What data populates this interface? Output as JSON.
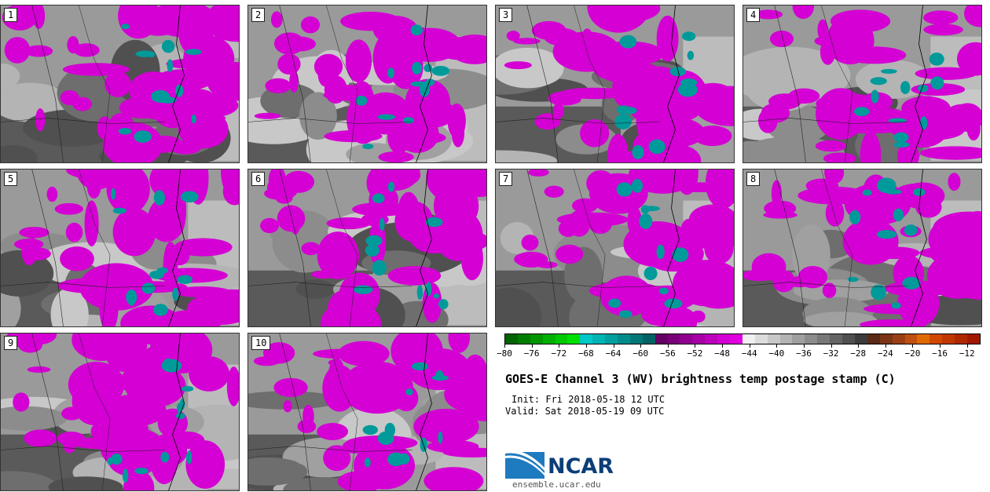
{
  "panels": [
    {
      "label": "1"
    },
    {
      "label": "2"
    },
    {
      "label": "3"
    },
    {
      "label": "4"
    },
    {
      "label": "5"
    },
    {
      "label": "6"
    },
    {
      "label": "7"
    },
    {
      "label": "8"
    },
    {
      "label": "9"
    },
    {
      "label": "10"
    }
  ],
  "colorbar": {
    "tick_labels": [
      "−80",
      "−76",
      "−72",
      "−68",
      "−64",
      "−60",
      "−56",
      "−52",
      "−48",
      "−44",
      "−40",
      "−36",
      "−32",
      "−28",
      "−24",
      "−20",
      "−16",
      "−12"
    ],
    "colors": [
      "#006400",
      "#007d00",
      "#009600",
      "#00b000",
      "#00c800",
      "#00e000",
      "#00c8c8",
      "#00b4b4",
      "#00a0a0",
      "#008c8c",
      "#007878",
      "#006464",
      "#640064",
      "#7a007a",
      "#900090",
      "#a600a6",
      "#bc00bc",
      "#d200d2",
      "#e000e0",
      "#f0f0f0",
      "#dcdcdc",
      "#c8c8c8",
      "#b4b4b4",
      "#a0a0a0",
      "#8c8c8c",
      "#787878",
      "#646464",
      "#505050",
      "#3c3c3c",
      "#5a2a14",
      "#7a3514",
      "#9a4014",
      "#c05010",
      "#e06a00",
      "#d04800",
      "#c03800",
      "#b02800",
      "#a01800"
    ]
  },
  "title": "GOES-E Channel 3 (WV) brightness temp postage stamp (C)",
  "init": "Init: Fri 2018-05-18 12 UTC",
  "valid": "Valid: Sat 2018-05-19 09 UTC",
  "logo": {
    "text": "NCAR",
    "site": "ensemble.ucar.edu"
  }
}
